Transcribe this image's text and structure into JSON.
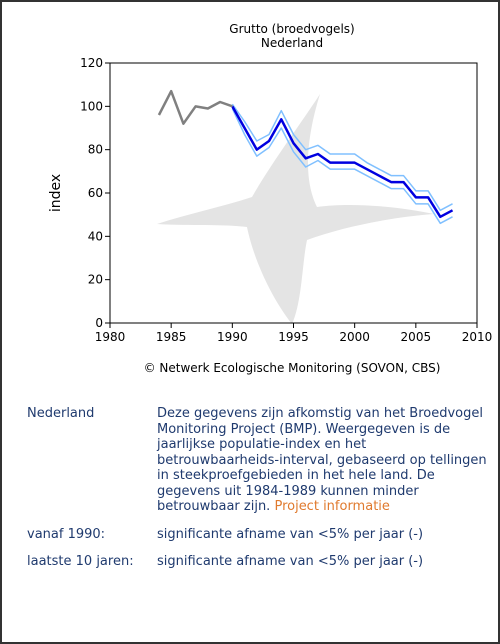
{
  "chart_data": {
    "type": "line",
    "title": "Grutto (broedvogels)",
    "subtitle": "Nederland",
    "y_label": "index",
    "source": "© Netwerk Ecologische Monitoring (SOVON, CBS)",
    "x": [
      1984,
      1985,
      1986,
      1987,
      1988,
      1989,
      1990,
      1991,
      1992,
      1993,
      1994,
      1995,
      1996,
      1997,
      1998,
      1999,
      2000,
      2001,
      2002,
      2003,
      2004,
      2005,
      2006,
      2007,
      2008
    ],
    "series": [
      {
        "color": "#80c0ff",
        "values": [
          null,
          null,
          null,
          null,
          null,
          null,
          101,
          93,
          84,
          87,
          98,
          87,
          80,
          82,
          78,
          78,
          78,
          74,
          71,
          68,
          68,
          61,
          61,
          52,
          55
        ]
      },
      {
        "color": "#80c0ff",
        "values": [
          null,
          null,
          null,
          null,
          null,
          null,
          99,
          87,
          77,
          81,
          90,
          79,
          72,
          75,
          71,
          71,
          71,
          68,
          65,
          62,
          62,
          55,
          55,
          46,
          49
        ]
      },
      {
        "color": "#0000e0",
        "values": [
          null,
          null,
          null,
          null,
          null,
          null,
          100,
          90,
          80,
          84,
          94,
          83,
          76,
          78,
          74,
          74,
          74,
          71,
          68,
          65,
          65,
          58,
          58,
          49,
          52
        ]
      },
      {
        "color": "#808080",
        "values": [
          96,
          107,
          92,
          100,
          99,
          102,
          100,
          null,
          null,
          null,
          null,
          null,
          null,
          null,
          null,
          null,
          null,
          null,
          null,
          null,
          null,
          null,
          null,
          null,
          null
        ]
      }
    ],
    "xlim": [
      1980,
      2010
    ],
    "xticks": [
      1980,
      1985,
      1990,
      1995,
      2000,
      2005,
      2010
    ],
    "ylim": [
      0,
      120
    ],
    "yticks": [
      0,
      20,
      40,
      60,
      80,
      100,
      120
    ],
    "grid": false
  },
  "info": {
    "rows": [
      {
        "label": "Nederland",
        "text": "Deze gegevens zijn afkomstig van het Broedvogel Monitoring Project (BMP). Weergegeven is de jaarlijkse populatie-index en het betrouwbaarheids-interval, gebaseerd op tellingen in steekproefgebieden in het hele land. De gegevens uit 1984-1989 kunnen minder betrouwbaar zijn.",
        "link": "Project informatie"
      },
      {
        "label": "vanaf 1990:",
        "text": "significante afname van <5% per jaar (-)"
      },
      {
        "label": "laatste 10 jaren:",
        "text": "significante afname van <5% per jaar (-)"
      }
    ]
  }
}
